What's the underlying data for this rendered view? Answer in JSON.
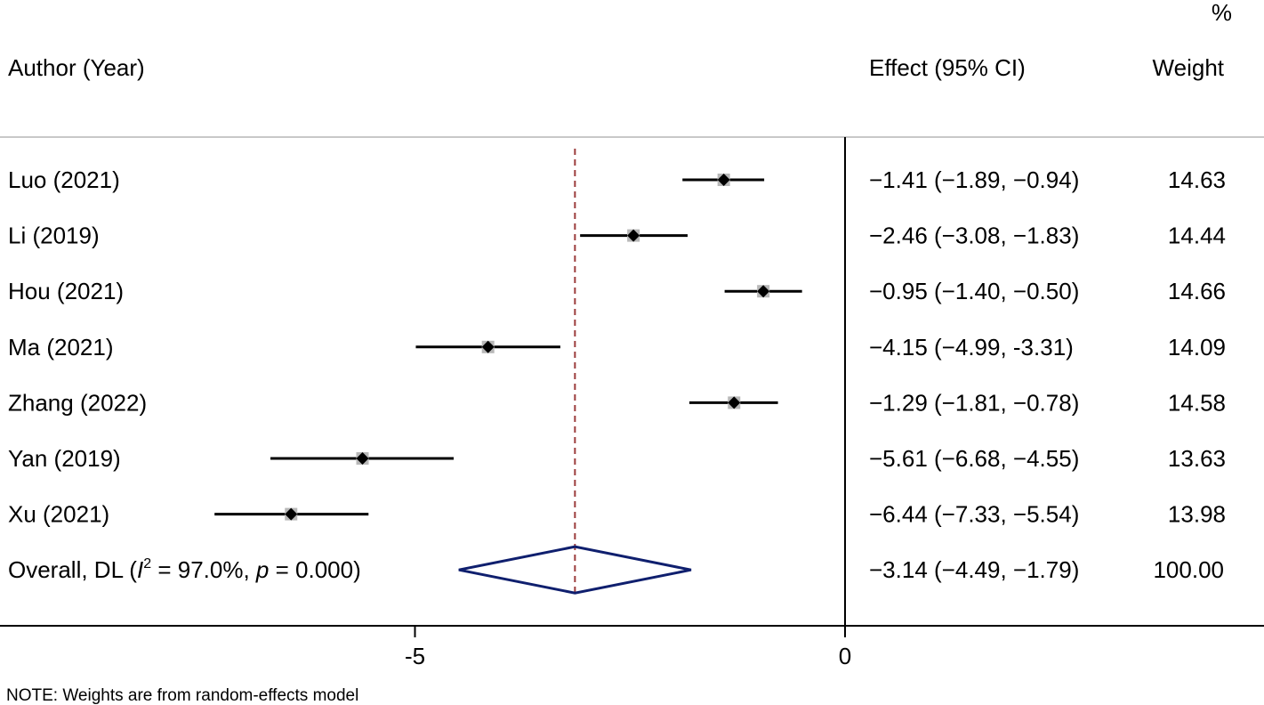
{
  "header": {
    "col_study": "Author (Year)",
    "col_effect": "Effect (95% CI)",
    "col_weight_unit": "%",
    "col_weight": "Weight"
  },
  "chart_data": {
    "type": "forest",
    "null_line": 0,
    "xticks": [
      {
        "value": -5,
        "label": "-5"
      },
      {
        "value": 0,
        "label": "0"
      }
    ],
    "studies": [
      {
        "label": "Luo (2021)",
        "es": -1.41,
        "lci": -1.89,
        "uci": -0.94,
        "effect_text": "−1.41 (−1.89, −0.94)",
        "weight": "14.63"
      },
      {
        "label": "Li (2019)",
        "es": -2.46,
        "lci": -3.08,
        "uci": -1.83,
        "effect_text": "−2.46 (−3.08, −1.83)",
        "weight": "14.44"
      },
      {
        "label": "Hou (2021)",
        "es": -0.95,
        "lci": -1.4,
        "uci": -0.5,
        "effect_text": "−0.95 (−1.40, −0.50)",
        "weight": "14.66"
      },
      {
        "label": "Ma (2021)",
        "es": -4.15,
        "lci": -4.99,
        "uci": -3.31,
        "effect_text": "−4.15 (−4.99, -3.31)",
        "weight": "14.09"
      },
      {
        "label": "Zhang (2022)",
        "es": -1.29,
        "lci": -1.81,
        "uci": -0.78,
        "effect_text": "−1.29 (−1.81, −0.78)",
        "weight": "14.58"
      },
      {
        "label": "Yan (2019)",
        "es": -5.61,
        "lci": -6.68,
        "uci": -4.55,
        "effect_text": "−5.61 (−6.68, −4.55)",
        "weight": "13.63"
      },
      {
        "label": "Xu (2021)",
        "es": -6.44,
        "lci": -7.33,
        "uci": -5.54,
        "effect_text": "−6.44 (−7.33, −5.54)",
        "weight": "13.98"
      }
    ],
    "overall": {
      "label_prefix": "Overall, DL (",
      "label_I": "I",
      "label_sup": "2",
      "label_mid": " = 97.0%, ",
      "label_p": "p",
      "label_suffix": " = 0.000)",
      "es": -3.14,
      "lci": -4.49,
      "uci": -1.79,
      "effect_text": "−3.14 (−4.49, −1.79)",
      "weight": "100.00"
    }
  },
  "footer": {
    "note": "NOTE: Weights are from random-effects model"
  },
  "colors": {
    "ci_line": "#000000",
    "marker": "#000000",
    "weight_box": "#b8b8b8",
    "overall_diamond": "#0f1f6e",
    "overall_line": "#9b3b3b",
    "axis": "#000000",
    "separator": "#c8c8c8"
  }
}
